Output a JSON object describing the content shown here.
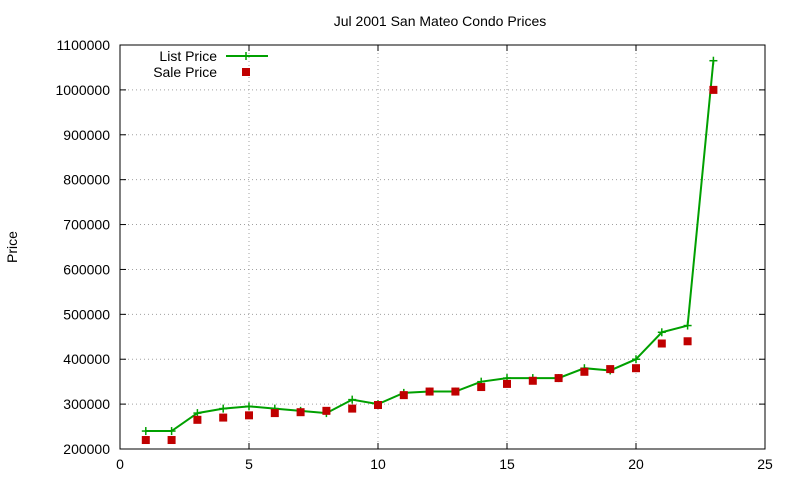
{
  "chart_data": {
    "type": "line",
    "title": "Jul 2001 San Mateo Condo Prices",
    "xlabel": "",
    "ylabel": "Price",
    "xlim": [
      0,
      25
    ],
    "ylim": [
      200000,
      1100000
    ],
    "xticks": [
      0,
      5,
      10,
      15,
      20,
      25
    ],
    "yticks": [
      200000,
      300000,
      400000,
      500000,
      600000,
      700000,
      800000,
      900000,
      1000000,
      1100000
    ],
    "grid": true,
    "legend_position": "top-left",
    "series": [
      {
        "name": "List Price",
        "style": "line-with-plus-markers",
        "color": "#00a000",
        "x": [
          1,
          2,
          3,
          4,
          5,
          6,
          7,
          8,
          9,
          10,
          11,
          12,
          13,
          14,
          15,
          16,
          17,
          18,
          19,
          20,
          21,
          22,
          23
        ],
        "y": [
          240000,
          240000,
          280000,
          290000,
          295000,
          290000,
          285000,
          280000,
          310000,
          300000,
          325000,
          328000,
          328000,
          350000,
          358000,
          358000,
          358000,
          380000,
          375000,
          400000,
          460000,
          475000,
          1065000
        ]
      },
      {
        "name": "Sale Price",
        "style": "square-markers",
        "color": "#c00000",
        "x": [
          1,
          2,
          3,
          4,
          5,
          6,
          7,
          8,
          9,
          10,
          11,
          12,
          13,
          14,
          15,
          16,
          17,
          18,
          19,
          20,
          21,
          22,
          23
        ],
        "y": [
          220000,
          220000,
          265000,
          270000,
          275000,
          280000,
          282000,
          285000,
          290000,
          298000,
          320000,
          328000,
          328000,
          338000,
          345000,
          352000,
          358000,
          372000,
          378000,
          380000,
          435000,
          440000,
          1000000
        ]
      }
    ]
  }
}
